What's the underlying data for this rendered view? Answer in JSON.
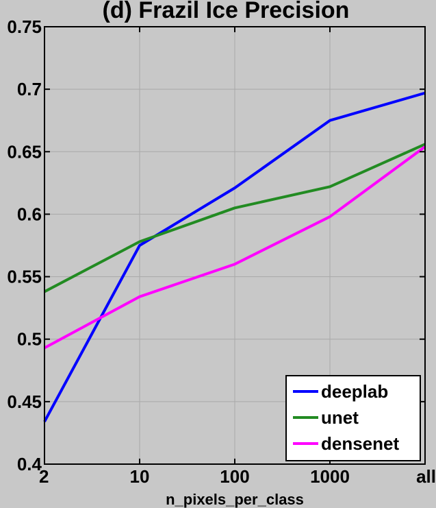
{
  "chart_data": {
    "type": "line",
    "title": "(d) Frazil Ice Precision",
    "xlabel": "n_pixels_per_class",
    "ylabel": "",
    "categories": [
      "2",
      "10",
      "100",
      "1000",
      "all"
    ],
    "ylim": [
      0.4,
      0.75
    ],
    "yticks": [
      "0.4",
      "0.45",
      "0.5",
      "0.55",
      "0.6",
      "0.65",
      "0.7",
      "0.75"
    ],
    "grid": true,
    "legend_position": "bottom-right",
    "series": [
      {
        "name": "deeplab",
        "color": "#0000ff",
        "values": [
          0.434,
          0.575,
          0.621,
          0.675,
          0.697
        ]
      },
      {
        "name": "unet",
        "color": "#228b22",
        "values": [
          0.538,
          0.578,
          0.605,
          0.622,
          0.656
        ]
      },
      {
        "name": "densenet",
        "color": "#ff00ff",
        "values": [
          0.493,
          0.534,
          0.56,
          0.598,
          0.654
        ]
      }
    ]
  }
}
